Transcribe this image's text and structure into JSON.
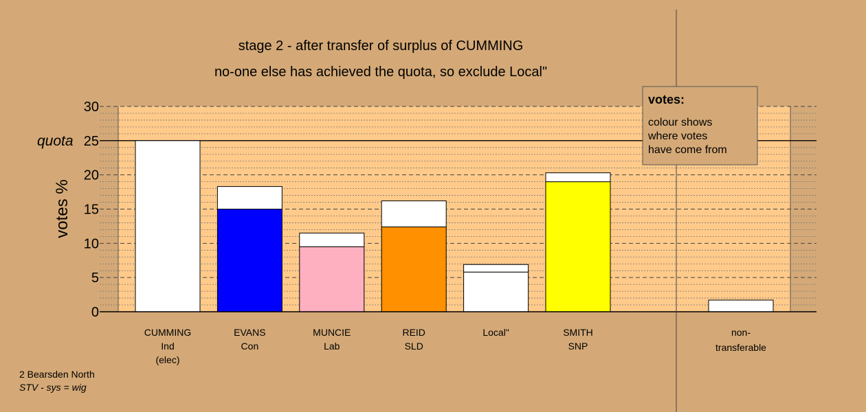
{
  "chart_data": {
    "type": "bar",
    "title": "stage 2 - after transfer of surplus of CUMMING",
    "subtitle": "no-one else has achieved the quota, so exclude Local\"",
    "ylabel": "votes %",
    "ylim": [
      0,
      30
    ],
    "yticks": [
      0,
      5,
      10,
      15,
      20,
      25,
      30
    ],
    "quota": 25,
    "quota_label": "quota",
    "candidates": [
      {
        "name": "CUMMING",
        "party": "Ind",
        "status": "(elec)",
        "base": 25.0,
        "transfer": 0.0,
        "color": "#ffffff"
      },
      {
        "name": "EVANS",
        "party": "Con",
        "status": "",
        "base": 15.0,
        "transfer": 3.3,
        "color": "#0000ff"
      },
      {
        "name": "MUNCIE",
        "party": "Lab",
        "status": "",
        "base": 9.5,
        "transfer": 2.0,
        "color": "#ffb0c0"
      },
      {
        "name": "REID",
        "party": "SLD",
        "status": "",
        "base": 12.4,
        "transfer": 3.8,
        "color": "#ff9000"
      },
      {
        "name": "Local\"",
        "party": "",
        "status": "",
        "base": 5.8,
        "transfer": 1.1,
        "color": "#ffffff"
      },
      {
        "name": "SMITH",
        "party": "SNP",
        "status": "",
        "base": 19.0,
        "transfer": 1.3,
        "color": "#ffff00"
      }
    ],
    "nontransferable": {
      "label_line1": "non-",
      "label_line2": "transferable",
      "value": 1.7
    },
    "transfer_color": "#ffffff",
    "background_color": "#d4a977",
    "plot_color": "#ffca8a",
    "grid": true
  },
  "legend": {
    "title": "votes:",
    "lines": [
      "colour shows",
      "where votes",
      "have come from"
    ]
  },
  "footnote": {
    "line1": "2 Bearsden North",
    "line2": "STV - sys = wig"
  }
}
